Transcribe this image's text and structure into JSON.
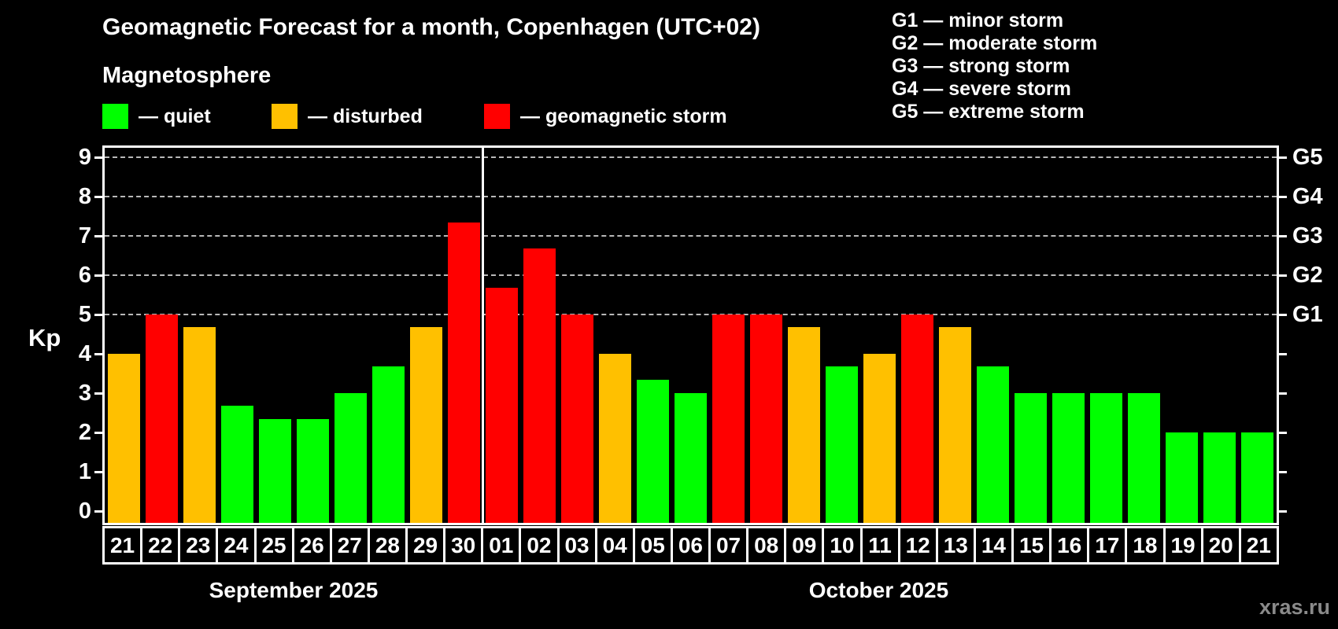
{
  "header": {
    "title": "Geomagnetic Forecast for a month, Copenhagen (UTC+02)",
    "subtitle": "Magnetosphere"
  },
  "legend": {
    "items": [
      {
        "name": "quiet",
        "label": "— quiet",
        "color": "#00ff00"
      },
      {
        "name": "disturbed",
        "label": "— disturbed",
        "color": "#ffc000"
      },
      {
        "name": "storm",
        "label": "— geomagnetic storm",
        "color": "#ff0000"
      }
    ]
  },
  "g_scale_legend": {
    "items": [
      "G1 — minor storm",
      "G2 — moderate storm",
      "G3 — strong storm",
      "G4 — severe storm",
      "G5 — extreme storm"
    ]
  },
  "y_axis": {
    "label": "Kp",
    "ticks": [
      0,
      1,
      2,
      3,
      4,
      5,
      6,
      7,
      8,
      9
    ]
  },
  "right_axis": {
    "labels": [
      {
        "kp": 5,
        "text": "G1"
      },
      {
        "kp": 6,
        "text": "G2"
      },
      {
        "kp": 7,
        "text": "G3"
      },
      {
        "kp": 8,
        "text": "G4"
      },
      {
        "kp": 9,
        "text": "G5"
      }
    ]
  },
  "chart_data": {
    "type": "bar",
    "title": "Geomagnetic Forecast for a month, Copenhagen (UTC+02)",
    "subtitle": "Magnetosphere",
    "ylabel": "Kp",
    "ylim": [
      0,
      9.3
    ],
    "gridlines_at": [
      5,
      6,
      7,
      8,
      9
    ],
    "legend_position": "top",
    "categories": [
      "21",
      "22",
      "23",
      "24",
      "25",
      "26",
      "27",
      "28",
      "29",
      "30",
      "01",
      "02",
      "03",
      "04",
      "05",
      "06",
      "07",
      "08",
      "09",
      "10",
      "11",
      "12",
      "13",
      "14",
      "15",
      "16",
      "17",
      "18",
      "19",
      "20",
      "21"
    ],
    "values": [
      4.0,
      5.0,
      4.67,
      2.67,
      2.33,
      2.33,
      3.0,
      3.67,
      4.67,
      7.33,
      5.67,
      6.67,
      5.0,
      4.0,
      3.33,
      3.0,
      5.0,
      5.0,
      4.67,
      3.67,
      4.0,
      5.0,
      4.67,
      3.67,
      3.0,
      3.0,
      3.0,
      3.0,
      2.0,
      2.0,
      2.0
    ],
    "statuses": [
      "disturbed",
      "storm",
      "disturbed",
      "quiet",
      "quiet",
      "quiet",
      "quiet",
      "quiet",
      "disturbed",
      "storm",
      "storm",
      "storm",
      "storm",
      "disturbed",
      "quiet",
      "quiet",
      "storm",
      "storm",
      "disturbed",
      "quiet",
      "disturbed",
      "storm",
      "disturbed",
      "quiet",
      "quiet",
      "quiet",
      "quiet",
      "quiet",
      "quiet",
      "quiet",
      "quiet"
    ],
    "status_colors": {
      "quiet": "#00ff00",
      "disturbed": "#ffc000",
      "storm": "#ff0000"
    },
    "months": [
      {
        "label": "September 2025",
        "days": 10
      },
      {
        "label": "October 2025",
        "days": 21
      }
    ]
  },
  "footer": {
    "watermark": "xras.ru"
  }
}
